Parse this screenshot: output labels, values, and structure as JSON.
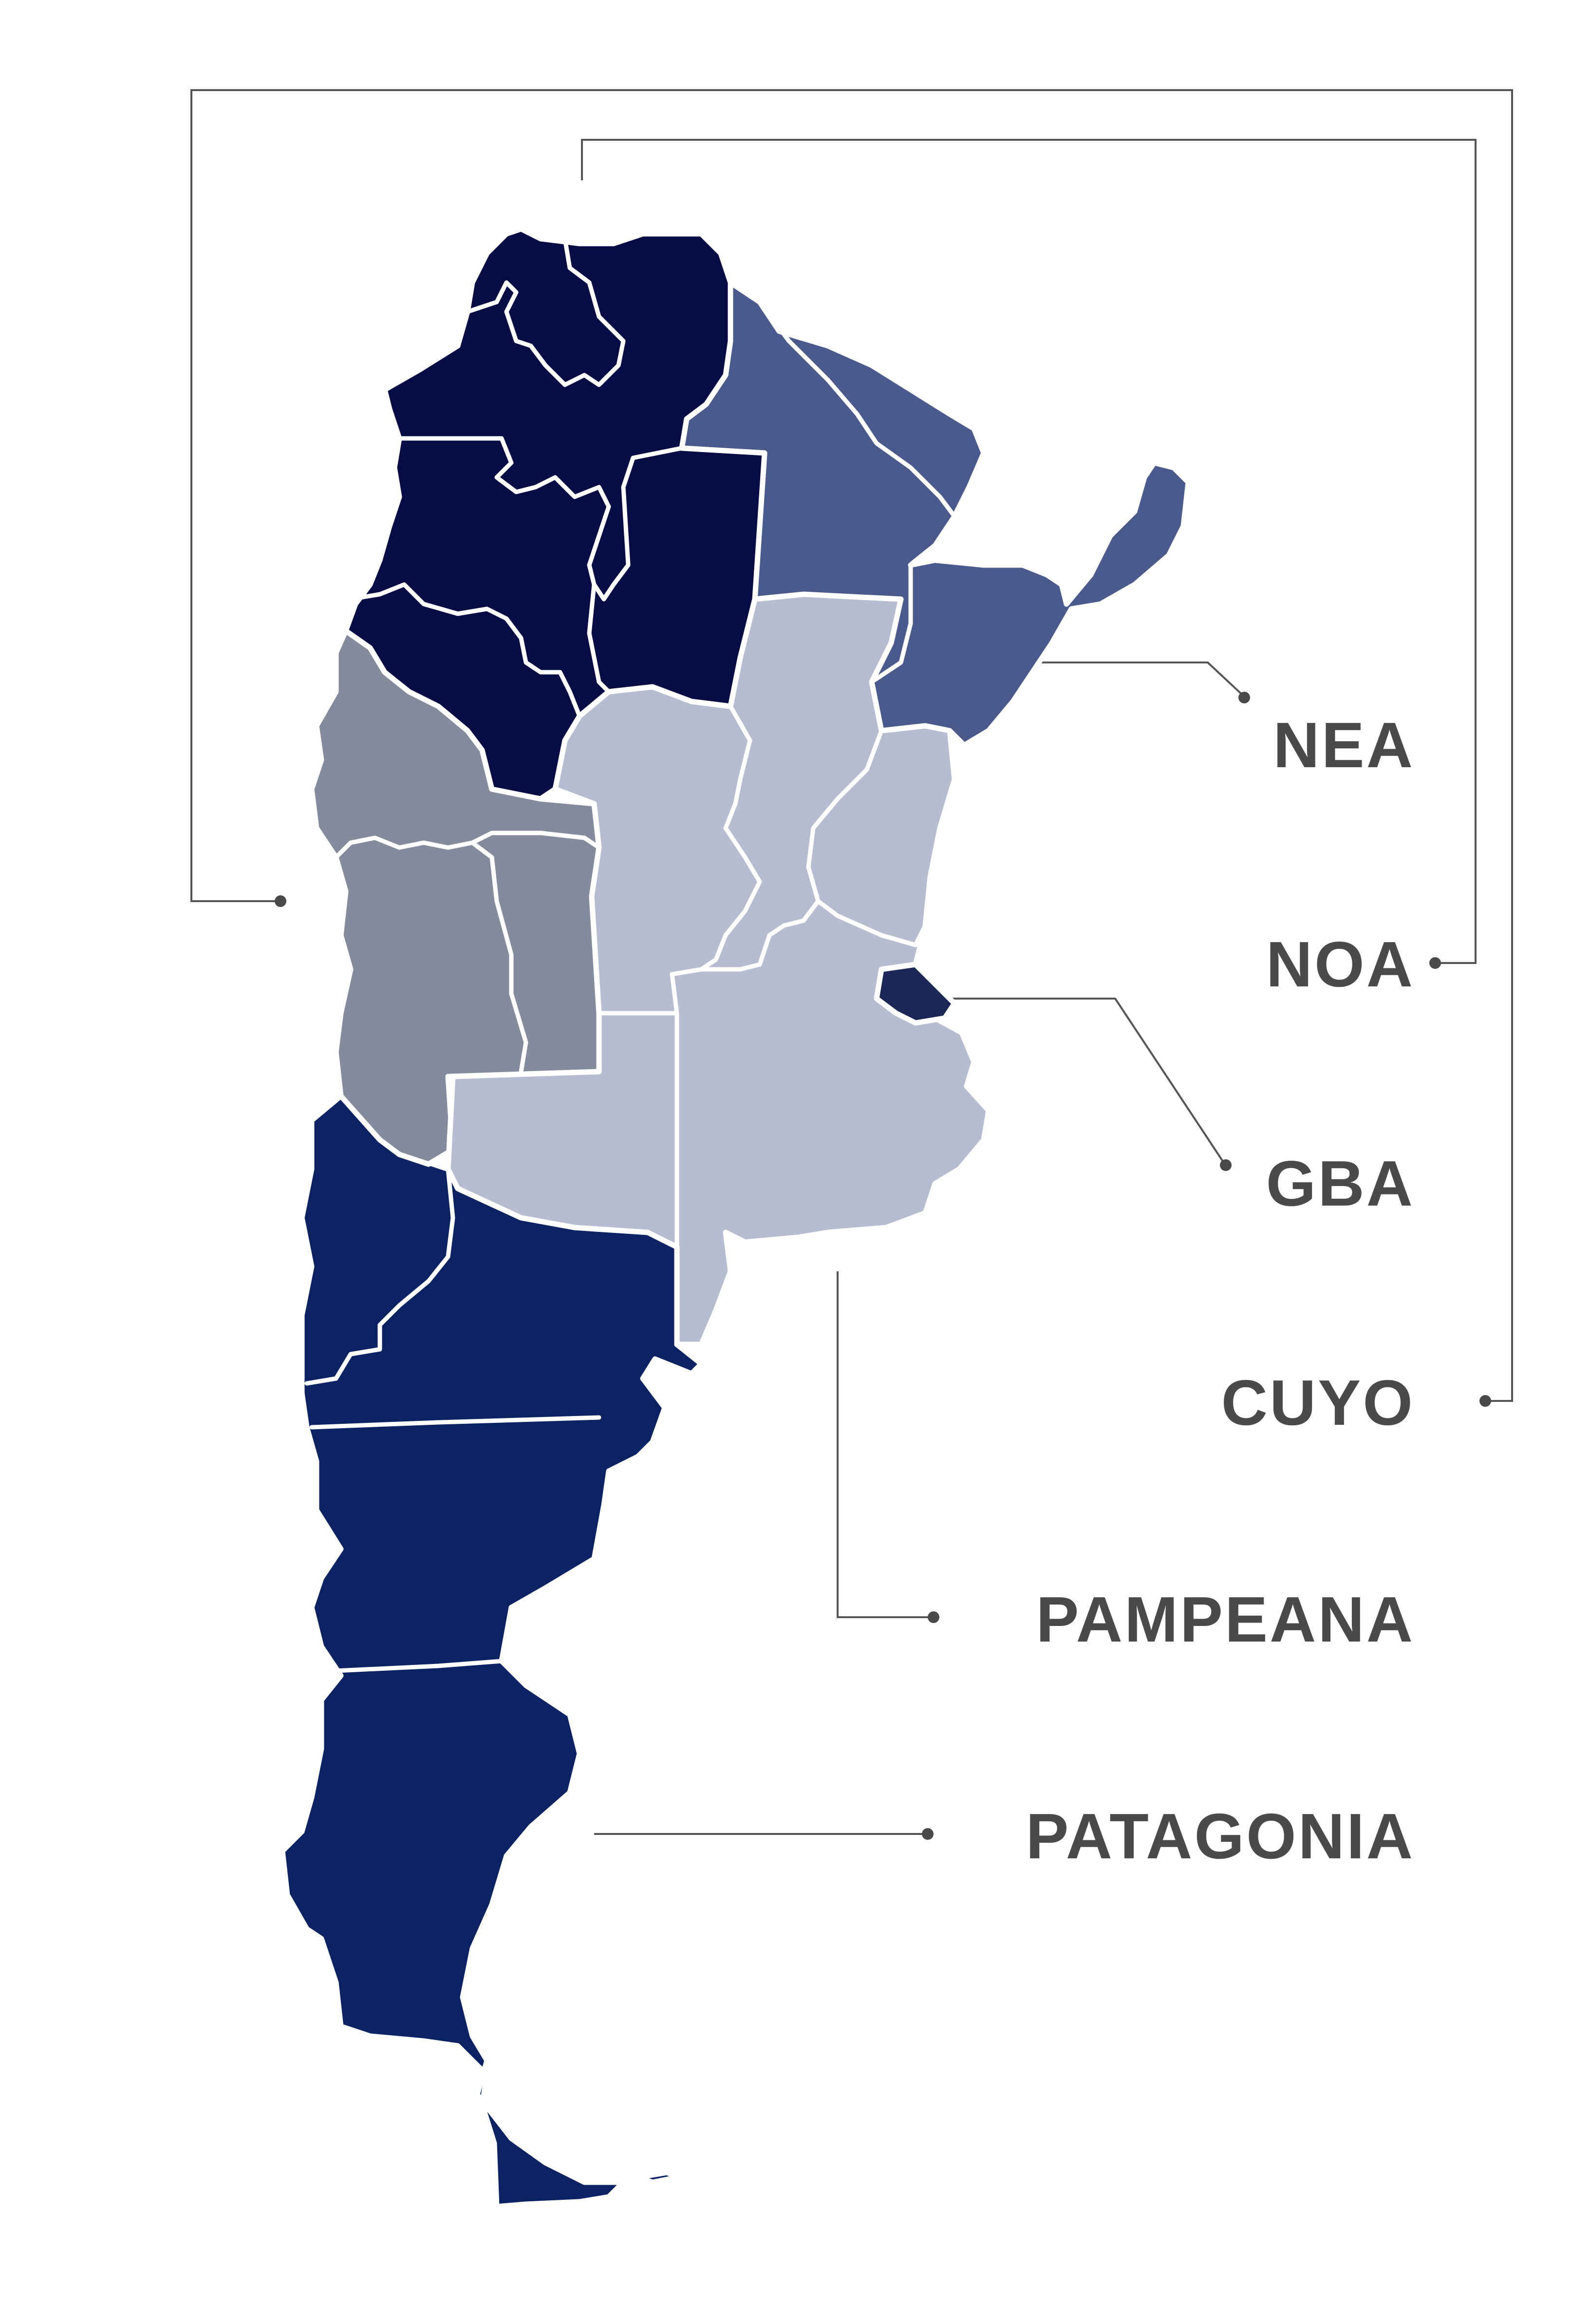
{
  "map": {
    "regions": [
      {
        "key": "noa",
        "name": "NOA",
        "color": "#070d44"
      },
      {
        "key": "nea",
        "name": "NEA",
        "color": "#4b5a8d"
      },
      {
        "key": "cuyo",
        "name": "CUYO",
        "color": "#848b9c"
      },
      {
        "key": "pampeana",
        "name": "PAMPEANA",
        "color": "#b6bdd1"
      },
      {
        "key": "gba",
        "name": "GBA",
        "color": "#1b2756"
      },
      {
        "key": "patagonia",
        "name": "PATAGONIA",
        "color": "#0b2263"
      }
    ],
    "stroke_color": "#ffffff",
    "label_color": "#4a4a4a",
    "leader_color": "#555555"
  }
}
